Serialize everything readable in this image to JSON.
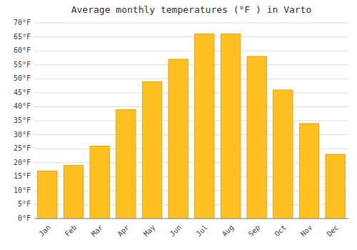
{
  "chart_data": {
    "type": "bar",
    "title": "Average monthly temperatures (°F ) in Varto",
    "categories": [
      "Jan",
      "Feb",
      "Mar",
      "Apr",
      "May",
      "Jun",
      "Jul",
      "Aug",
      "Sep",
      "Oct",
      "Nov",
      "Dec"
    ],
    "values": [
      17,
      19,
      26,
      39,
      49,
      57,
      66,
      66,
      58,
      46,
      34,
      23
    ],
    "color": "#FFC020",
    "ylim": [
      0,
      70
    ],
    "yticks": [
      {
        "value": 0,
        "label": "0°F"
      },
      {
        "value": 5,
        "label": "5°F"
      },
      {
        "value": 10,
        "label": "10°F"
      },
      {
        "value": 15,
        "label": "15°F"
      },
      {
        "value": 20,
        "label": "20°F"
      },
      {
        "value": 25,
        "label": "25°F"
      },
      {
        "value": 30,
        "label": "30°F"
      },
      {
        "value": 35,
        "label": "35°F"
      },
      {
        "value": 40,
        "label": "40°F"
      },
      {
        "value": 45,
        "label": "45°F"
      },
      {
        "value": 50,
        "label": "50°F"
      },
      {
        "value": 55,
        "label": "55°F"
      },
      {
        "value": 60,
        "label": "60°F"
      },
      {
        "value": 65,
        "label": "65°F"
      },
      {
        "value": 70,
        "label": "70°F"
      }
    ],
    "grid": true
  }
}
